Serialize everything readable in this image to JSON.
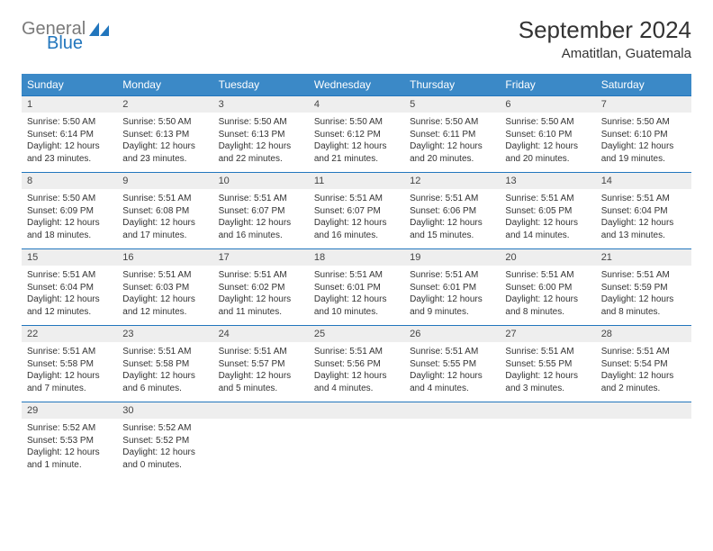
{
  "logo": {
    "text1": "General",
    "text2": "Blue",
    "color1": "#7a7a7a",
    "color2": "#2276bd"
  },
  "title": "September 2024",
  "location": "Amatitlan, Guatemala",
  "header_bg": "#3b89c7",
  "header_fg": "#ffffff",
  "daterow_bg": "#eeeeee",
  "daterow_border": "#2276bd",
  "text_color": "#333333",
  "days": [
    "Sunday",
    "Monday",
    "Tuesday",
    "Wednesday",
    "Thursday",
    "Friday",
    "Saturday"
  ],
  "weeks": [
    {
      "dates": [
        "1",
        "2",
        "3",
        "4",
        "5",
        "6",
        "7"
      ],
      "cells": [
        {
          "sunrise": "5:50 AM",
          "sunset": "6:14 PM",
          "daylight": "12 hours and 23 minutes."
        },
        {
          "sunrise": "5:50 AM",
          "sunset": "6:13 PM",
          "daylight": "12 hours and 23 minutes."
        },
        {
          "sunrise": "5:50 AM",
          "sunset": "6:13 PM",
          "daylight": "12 hours and 22 minutes."
        },
        {
          "sunrise": "5:50 AM",
          "sunset": "6:12 PM",
          "daylight": "12 hours and 21 minutes."
        },
        {
          "sunrise": "5:50 AM",
          "sunset": "6:11 PM",
          "daylight": "12 hours and 20 minutes."
        },
        {
          "sunrise": "5:50 AM",
          "sunset": "6:10 PM",
          "daylight": "12 hours and 20 minutes."
        },
        {
          "sunrise": "5:50 AM",
          "sunset": "6:10 PM",
          "daylight": "12 hours and 19 minutes."
        }
      ]
    },
    {
      "dates": [
        "8",
        "9",
        "10",
        "11",
        "12",
        "13",
        "14"
      ],
      "cells": [
        {
          "sunrise": "5:50 AM",
          "sunset": "6:09 PM",
          "daylight": "12 hours and 18 minutes."
        },
        {
          "sunrise": "5:51 AM",
          "sunset": "6:08 PM",
          "daylight": "12 hours and 17 minutes."
        },
        {
          "sunrise": "5:51 AM",
          "sunset": "6:07 PM",
          "daylight": "12 hours and 16 minutes."
        },
        {
          "sunrise": "5:51 AM",
          "sunset": "6:07 PM",
          "daylight": "12 hours and 16 minutes."
        },
        {
          "sunrise": "5:51 AM",
          "sunset": "6:06 PM",
          "daylight": "12 hours and 15 minutes."
        },
        {
          "sunrise": "5:51 AM",
          "sunset": "6:05 PM",
          "daylight": "12 hours and 14 minutes."
        },
        {
          "sunrise": "5:51 AM",
          "sunset": "6:04 PM",
          "daylight": "12 hours and 13 minutes."
        }
      ]
    },
    {
      "dates": [
        "15",
        "16",
        "17",
        "18",
        "19",
        "20",
        "21"
      ],
      "cells": [
        {
          "sunrise": "5:51 AM",
          "sunset": "6:04 PM",
          "daylight": "12 hours and 12 minutes."
        },
        {
          "sunrise": "5:51 AM",
          "sunset": "6:03 PM",
          "daylight": "12 hours and 12 minutes."
        },
        {
          "sunrise": "5:51 AM",
          "sunset": "6:02 PM",
          "daylight": "12 hours and 11 minutes."
        },
        {
          "sunrise": "5:51 AM",
          "sunset": "6:01 PM",
          "daylight": "12 hours and 10 minutes."
        },
        {
          "sunrise": "5:51 AM",
          "sunset": "6:01 PM",
          "daylight": "12 hours and 9 minutes."
        },
        {
          "sunrise": "5:51 AM",
          "sunset": "6:00 PM",
          "daylight": "12 hours and 8 minutes."
        },
        {
          "sunrise": "5:51 AM",
          "sunset": "5:59 PM",
          "daylight": "12 hours and 8 minutes."
        }
      ]
    },
    {
      "dates": [
        "22",
        "23",
        "24",
        "25",
        "26",
        "27",
        "28"
      ],
      "cells": [
        {
          "sunrise": "5:51 AM",
          "sunset": "5:58 PM",
          "daylight": "12 hours and 7 minutes."
        },
        {
          "sunrise": "5:51 AM",
          "sunset": "5:58 PM",
          "daylight": "12 hours and 6 minutes."
        },
        {
          "sunrise": "5:51 AM",
          "sunset": "5:57 PM",
          "daylight": "12 hours and 5 minutes."
        },
        {
          "sunrise": "5:51 AM",
          "sunset": "5:56 PM",
          "daylight": "12 hours and 4 minutes."
        },
        {
          "sunrise": "5:51 AM",
          "sunset": "5:55 PM",
          "daylight": "12 hours and 4 minutes."
        },
        {
          "sunrise": "5:51 AM",
          "sunset": "5:55 PM",
          "daylight": "12 hours and 3 minutes."
        },
        {
          "sunrise": "5:51 AM",
          "sunset": "5:54 PM",
          "daylight": "12 hours and 2 minutes."
        }
      ]
    },
    {
      "dates": [
        "29",
        "30",
        "",
        "",
        "",
        "",
        ""
      ],
      "cells": [
        {
          "sunrise": "5:52 AM",
          "sunset": "5:53 PM",
          "daylight": "12 hours and 1 minute."
        },
        {
          "sunrise": "5:52 AM",
          "sunset": "5:52 PM",
          "daylight": "12 hours and 0 minutes."
        },
        null,
        null,
        null,
        null,
        null
      ]
    }
  ]
}
